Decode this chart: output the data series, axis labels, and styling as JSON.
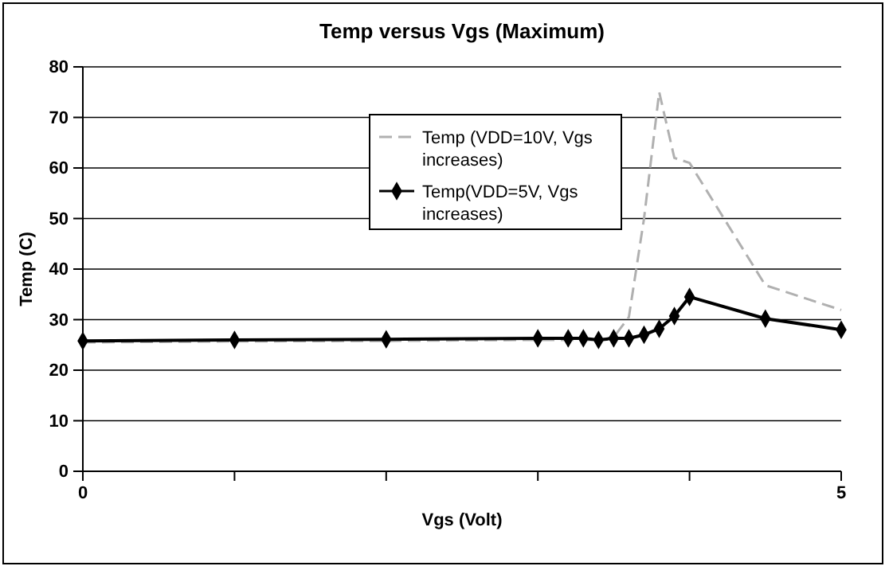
{
  "chart_data": {
    "type": "line",
    "title": "Temp versus Vgs (Maximum)",
    "xlabel": "Vgs (Volt)",
    "ylabel": "Temp (C)",
    "xlim": [
      0,
      5
    ],
    "xticks": [
      0,
      {
        "value": 1,
        "label": null
      },
      {
        "value": 2,
        "label": null
      },
      {
        "value": 3,
        "label": null
      },
      {
        "value": 4,
        "label": null
      },
      5
    ],
    "ylim": [
      0,
      80
    ],
    "yticks": [
      0,
      10,
      20,
      30,
      40,
      50,
      60,
      70,
      80
    ],
    "grid": "y",
    "legend": "top",
    "x": [
      0,
      1,
      2,
      3,
      3.2,
      3.3,
      3.4,
      3.5,
      3.6,
      3.7,
      3.8,
      3.9,
      4,
      4.5,
      5
    ],
    "series": [
      {
        "name": "Temp (VDD=10V, Vgs increases)",
        "color": "#b0b0b0",
        "line_style": "dashed",
        "marker": "none",
        "values": [
          25.5,
          25.7,
          25.8,
          26,
          26,
          26,
          26,
          26.5,
          30.5,
          50,
          75,
          62,
          61,
          36.8,
          31.9
        ]
      },
      {
        "name": "Temp(VDD=5V, Vgs increases)",
        "color": "#000000",
        "line_style": "solid",
        "marker": "diamond",
        "values": [
          25.8,
          26,
          26.1,
          26.3,
          26.3,
          26.3,
          26,
          26.3,
          26.3,
          27,
          28.2,
          30.7,
          34.5,
          30.2,
          28
        ]
      }
    ]
  }
}
